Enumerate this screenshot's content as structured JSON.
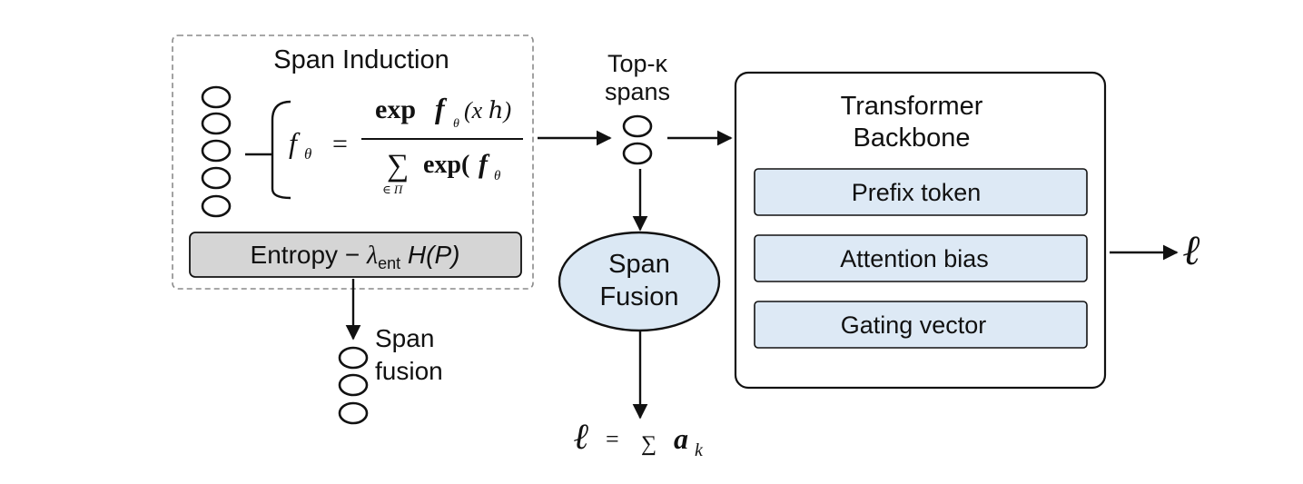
{
  "span_induction": {
    "title": "Span Induction",
    "formula_lhs": "f",
    "formula_lhs_sub": "θ",
    "formula_eq": "=",
    "numerator_exp": "exp",
    "numerator_f": "f",
    "numerator_sub": "θ",
    "numerator_arg": "(x ℎ)",
    "denominator_sum": "∑",
    "denominator_sum_sub": "∈ Π",
    "denominator_exp": "exp(",
    "denominator_f": "f",
    "denominator_sub": "θ",
    "entropy_label": "Entropy − ",
    "entropy_lambda": "λ",
    "entropy_lambda_sub": "ent",
    "entropy_term": " H(P)"
  },
  "topk": {
    "line1": "Top-κ",
    "line2": "spans"
  },
  "span_fusion_lower": {
    "line1": "Span",
    "line2": "fusion"
  },
  "span_fusion_node": {
    "line1": "Span",
    "line2": "Fusion",
    "fill": "#dbe8f4"
  },
  "loss_sum": {
    "lhs": "ℓ",
    "eq": "=",
    "sigma": "∑",
    "a": "a",
    "k": "k"
  },
  "transformer": {
    "line1": "Transformer",
    "line2": "Backbone",
    "items": [
      {
        "label": "Prefix token"
      },
      {
        "label": "Attention bias"
      },
      {
        "label": "Gating vector"
      }
    ],
    "item_fill": "#dde9f5"
  },
  "output": {
    "symbol": "ℓ"
  }
}
